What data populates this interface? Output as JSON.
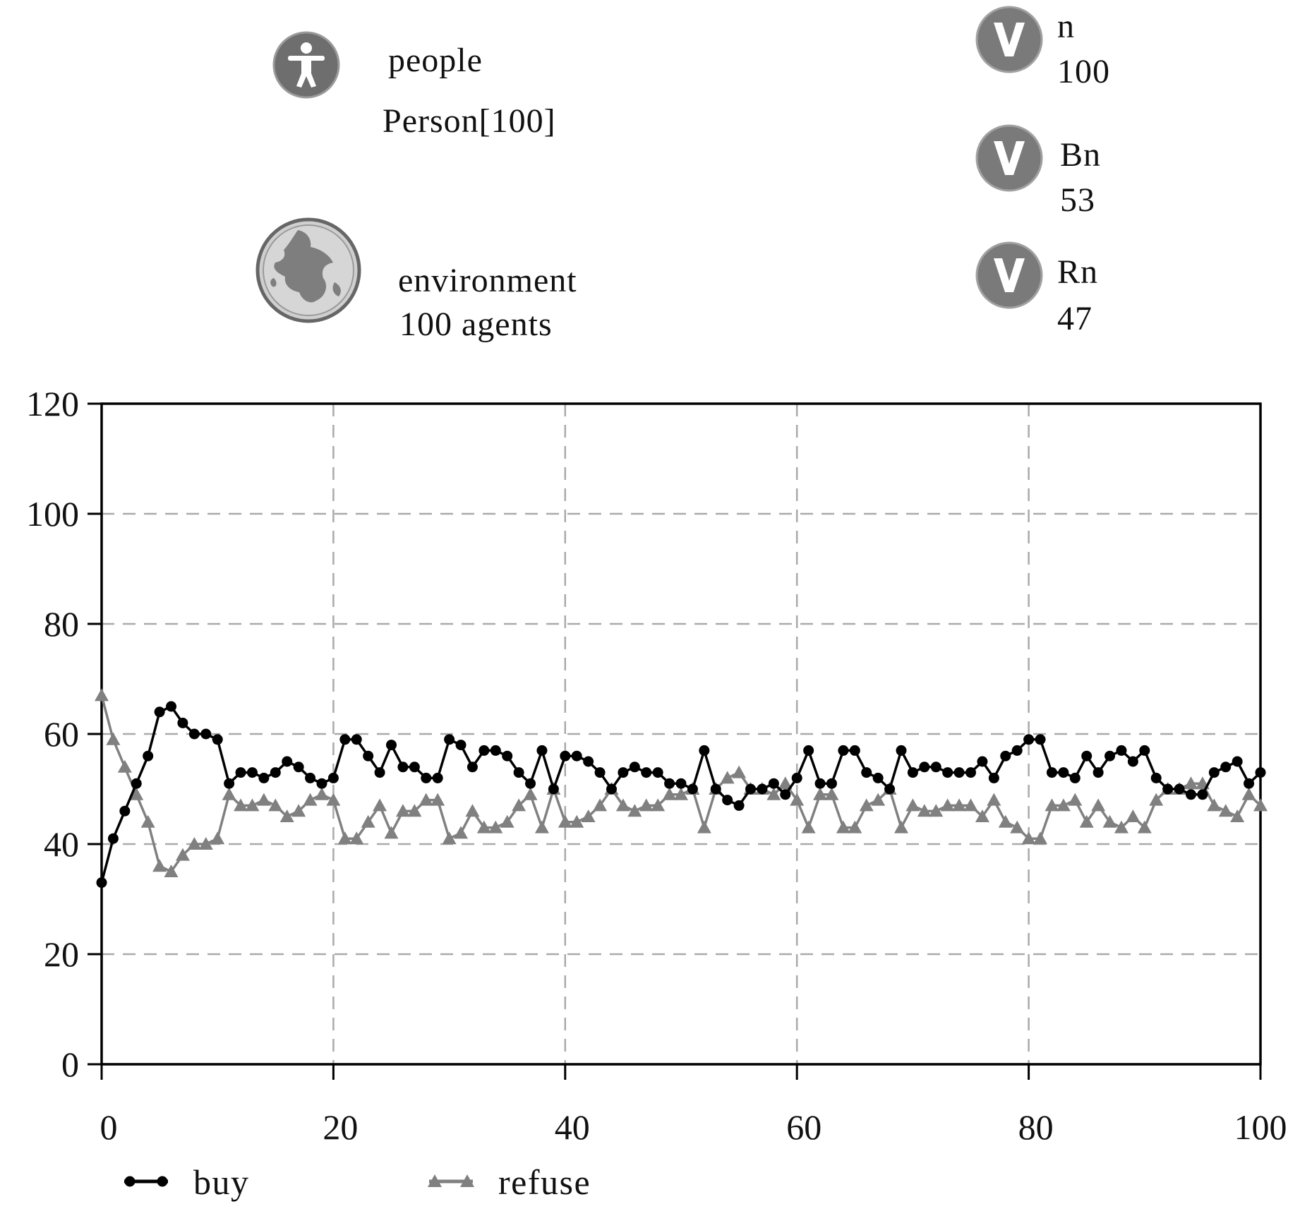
{
  "model": {
    "agents": {
      "people": {
        "name": "people",
        "type": "Person[100]",
        "icon": "person-icon"
      },
      "environment": {
        "name": "environment",
        "summary": "100 agents",
        "icon": "globe-icon"
      }
    },
    "variables": [
      {
        "name": "n",
        "value": "100",
        "icon": "variable-v-icon"
      },
      {
        "name": "Bn",
        "value": "53",
        "icon": "variable-v-icon"
      },
      {
        "name": "Rn",
        "value": "47",
        "icon": "variable-v-icon"
      }
    ]
  },
  "colors": {
    "icon_gray": "#7a7a7a",
    "buy_series": "#000000",
    "refuse_series": "#808080",
    "grid": "#aaaaaa"
  },
  "chart_data": {
    "type": "line",
    "title": "",
    "xlabel": "",
    "ylabel": "",
    "xlim": [
      0,
      100
    ],
    "ylim": [
      0,
      120
    ],
    "xticks": [
      "0",
      "20",
      "40",
      "60",
      "80",
      "100"
    ],
    "yticks": [
      "0",
      "20",
      "40",
      "60",
      "80",
      "100",
      "120"
    ],
    "grid": true,
    "legend_position": "bottom-left",
    "x": [
      0,
      1,
      2,
      3,
      4,
      5,
      6,
      7,
      8,
      9,
      10,
      11,
      12,
      13,
      14,
      15,
      16,
      17,
      18,
      19,
      20,
      21,
      22,
      23,
      24,
      25,
      26,
      27,
      28,
      29,
      30,
      31,
      32,
      33,
      34,
      35,
      36,
      37,
      38,
      39,
      40,
      41,
      42,
      43,
      44,
      45,
      46,
      47,
      48,
      49,
      50,
      51,
      52,
      53,
      54,
      55,
      56,
      57,
      58,
      59,
      60,
      61,
      62,
      63,
      64,
      65,
      66,
      67,
      68,
      69,
      70,
      71,
      72,
      73,
      74,
      75,
      76,
      77,
      78,
      79,
      80,
      81,
      82,
      83,
      84,
      85,
      86,
      87,
      88,
      89,
      90,
      91,
      92,
      93,
      94,
      95,
      96,
      97,
      98,
      99,
      100
    ],
    "series": [
      {
        "name": "buy",
        "marker": "circle",
        "values": [
          33,
          41,
          46,
          51,
          56,
          64,
          65,
          62,
          60,
          60,
          59,
          51,
          53,
          53,
          52,
          53,
          55,
          54,
          52,
          51,
          52,
          59,
          59,
          56,
          53,
          58,
          54,
          54,
          52,
          52,
          59,
          58,
          54,
          57,
          57,
          56,
          53,
          51,
          57,
          50,
          56,
          56,
          55,
          53,
          50,
          53,
          54,
          53,
          53,
          51,
          51,
          50,
          57,
          50,
          48,
          47,
          50,
          50,
          51,
          49,
          52,
          57,
          51,
          51,
          57,
          57,
          53,
          52,
          50,
          57,
          53,
          54,
          54,
          53,
          53,
          53,
          55,
          52,
          56,
          57,
          59,
          59,
          53,
          53,
          52,
          56,
          53,
          56,
          57,
          55,
          57,
          52,
          50,
          50,
          49,
          49,
          53,
          54,
          55,
          51,
          53
        ]
      },
      {
        "name": "refuse",
        "marker": "triangle",
        "values": [
          67,
          59,
          54,
          49,
          44,
          36,
          35,
          38,
          40,
          40,
          41,
          49,
          47,
          47,
          48,
          47,
          45,
          46,
          48,
          49,
          48,
          41,
          41,
          44,
          47,
          42,
          46,
          46,
          48,
          48,
          41,
          42,
          46,
          43,
          43,
          44,
          47,
          49,
          43,
          50,
          44,
          44,
          45,
          47,
          50,
          47,
          46,
          47,
          47,
          49,
          49,
          50,
          43,
          50,
          52,
          53,
          50,
          50,
          49,
          51,
          48,
          43,
          49,
          49,
          43,
          43,
          47,
          48,
          50,
          43,
          47,
          46,
          46,
          47,
          47,
          47,
          45,
          48,
          44,
          43,
          41,
          41,
          47,
          47,
          48,
          44,
          47,
          44,
          43,
          45,
          43,
          48,
          50,
          50,
          51,
          51,
          47,
          46,
          45,
          49,
          47
        ]
      }
    ]
  }
}
